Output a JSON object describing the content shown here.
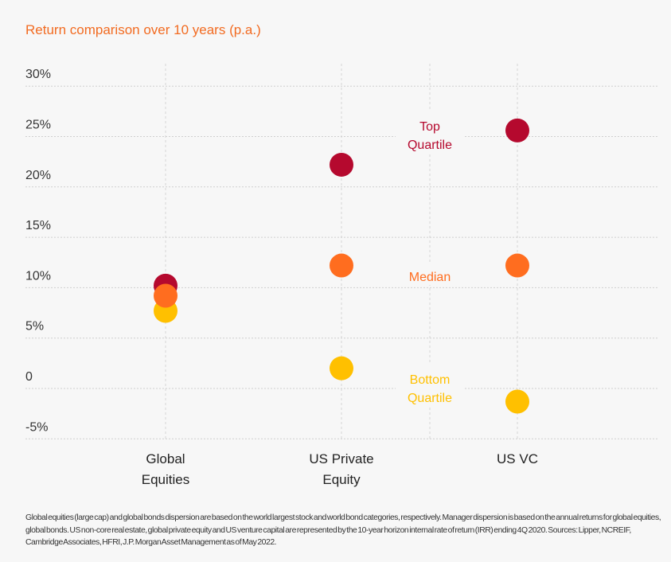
{
  "chart_data": {
    "type": "scatter",
    "title": "Return comparison over 10 years (p.a.)",
    "categories": [
      "Global\nEquities",
      "US Private\nEquity",
      "US VC"
    ],
    "ylim": [
      -5,
      30
    ],
    "yticks": [
      -5,
      0,
      5,
      10,
      15,
      20,
      25,
      30
    ],
    "ytick_labels": [
      "-5%",
      "0",
      "5%",
      "10%",
      "15%",
      "20%",
      "25%",
      "30%"
    ],
    "grid": true,
    "series": [
      {
        "name": "Top\nQuartile",
        "color": "#b5092e",
        "values": [
          10.2,
          22.2,
          25.6
        ]
      },
      {
        "name": "Median",
        "color": "#ff6d1f",
        "values": [
          9.2,
          12.2,
          12.2
        ]
      },
      {
        "name": "Bottom\nQuartile",
        "color": "#ffc000",
        "values": [
          7.7,
          2.0,
          -1.3
        ]
      }
    ],
    "legend_placement": "inline between US Private Equity and US VC"
  },
  "footnote": "Global equities (large cap) and global bonds dispersion are based on the world largest stock and world bond categories, respectively. Manager dispersion is based on the annual returns for global equities, global bonds. US non-core real estate, global private equity and US venture capital are represented by the 10-year horizon internal rate of return (IRR) ending 4Q 2020. Sources: Lipper, NCREIF, Cambridge Associates, HFRI, J.P. Morgan Asset Management as of May 2022."
}
